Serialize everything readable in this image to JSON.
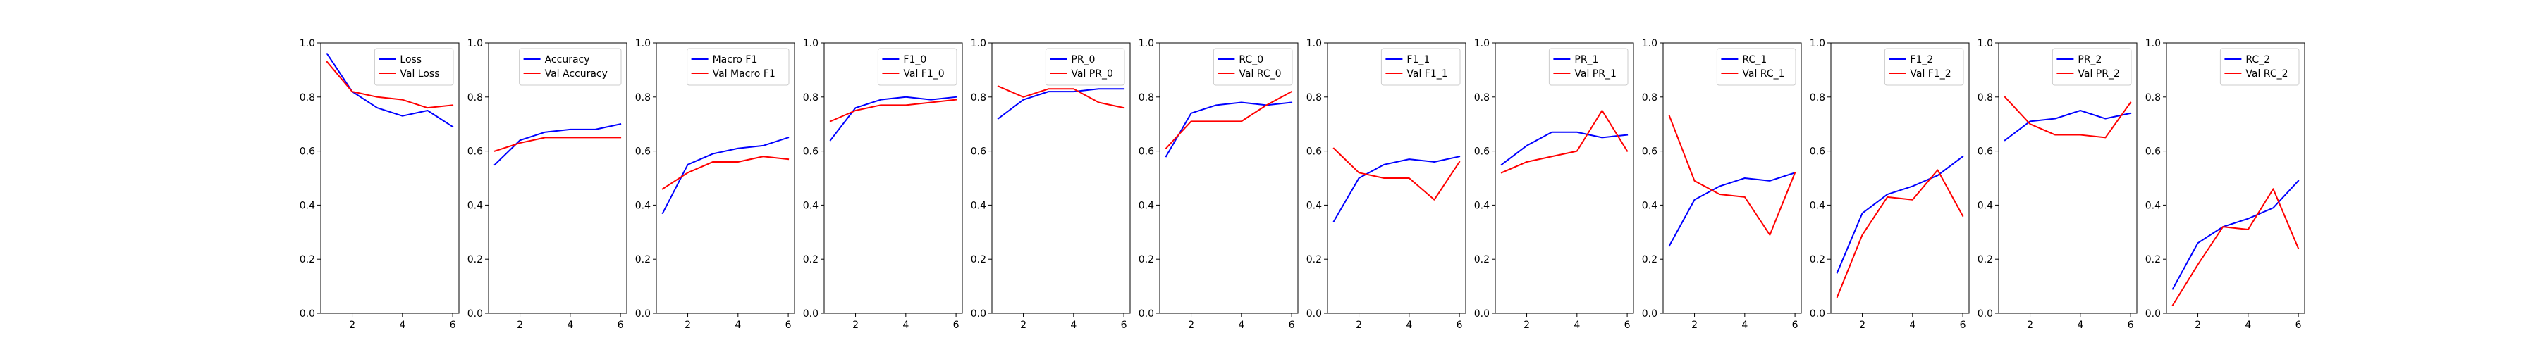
{
  "figure": {
    "colors": {
      "train": "#0000ff",
      "val": "#ff0000",
      "axis": "#000000",
      "background": "#ffffff"
    },
    "legend_placement": "upper-right"
  },
  "chart_data": [
    {
      "type": "line",
      "x": [
        1,
        2,
        3,
        4,
        5,
        6
      ],
      "xticks": [
        2,
        4,
        6
      ],
      "xlim": [
        0.75,
        6.25
      ],
      "ylim": [
        0,
        1
      ],
      "yticks": [
        0.0,
        0.2,
        0.4,
        0.6,
        0.8,
        1.0
      ],
      "grid": false,
      "legend": "upper-right",
      "series": [
        {
          "name": "Loss",
          "color": "#0000ff",
          "values": [
            0.96,
            0.82,
            0.76,
            0.73,
            0.75,
            0.69
          ]
        },
        {
          "name": "Val Loss",
          "color": "#ff0000",
          "values": [
            0.93,
            0.82,
            0.8,
            0.79,
            0.76,
            0.77
          ]
        }
      ]
    },
    {
      "type": "line",
      "x": [
        1,
        2,
        3,
        4,
        5,
        6
      ],
      "xticks": [
        2,
        4,
        6
      ],
      "xlim": [
        0.75,
        6.25
      ],
      "ylim": [
        0,
        1
      ],
      "yticks": [
        0.0,
        0.2,
        0.4,
        0.6,
        0.8,
        1.0
      ],
      "grid": false,
      "legend": "upper-right",
      "series": [
        {
          "name": "Accuracy",
          "color": "#0000ff",
          "values": [
            0.55,
            0.64,
            0.67,
            0.68,
            0.68,
            0.7
          ]
        },
        {
          "name": "Val Accuracy",
          "color": "#ff0000",
          "values": [
            0.6,
            0.63,
            0.65,
            0.65,
            0.65,
            0.65
          ]
        }
      ]
    },
    {
      "type": "line",
      "x": [
        1,
        2,
        3,
        4,
        5,
        6
      ],
      "xticks": [
        2,
        4,
        6
      ],
      "xlim": [
        0.75,
        6.25
      ],
      "ylim": [
        0,
        1
      ],
      "yticks": [
        0.0,
        0.2,
        0.4,
        0.6,
        0.8,
        1.0
      ],
      "grid": false,
      "legend": "upper-right",
      "series": [
        {
          "name": "Macro F1",
          "color": "#0000ff",
          "values": [
            0.37,
            0.55,
            0.59,
            0.61,
            0.62,
            0.65
          ]
        },
        {
          "name": "Val Macro F1",
          "color": "#ff0000",
          "values": [
            0.46,
            0.52,
            0.56,
            0.56,
            0.58,
            0.57
          ]
        }
      ]
    },
    {
      "type": "line",
      "x": [
        1,
        2,
        3,
        4,
        5,
        6
      ],
      "xticks": [
        2,
        4,
        6
      ],
      "xlim": [
        0.75,
        6.25
      ],
      "ylim": [
        0,
        1
      ],
      "yticks": [
        0.0,
        0.2,
        0.4,
        0.6,
        0.8,
        1.0
      ],
      "grid": false,
      "legend": "upper-right",
      "series": [
        {
          "name": "F1_0",
          "color": "#0000ff",
          "values": [
            0.64,
            0.76,
            0.79,
            0.8,
            0.79,
            0.8
          ]
        },
        {
          "name": "Val F1_0",
          "color": "#ff0000",
          "values": [
            0.71,
            0.75,
            0.77,
            0.77,
            0.78,
            0.79
          ]
        }
      ]
    },
    {
      "type": "line",
      "x": [
        1,
        2,
        3,
        4,
        5,
        6
      ],
      "xticks": [
        2,
        4,
        6
      ],
      "xlim": [
        0.75,
        6.25
      ],
      "ylim": [
        0,
        1
      ],
      "yticks": [
        0.0,
        0.2,
        0.4,
        0.6,
        0.8,
        1.0
      ],
      "grid": false,
      "legend": "upper-right",
      "series": [
        {
          "name": "PR_0",
          "color": "#0000ff",
          "values": [
            0.72,
            0.79,
            0.82,
            0.82,
            0.83,
            0.83
          ]
        },
        {
          "name": "Val PR_0",
          "color": "#ff0000",
          "values": [
            0.84,
            0.8,
            0.83,
            0.83,
            0.78,
            0.76
          ]
        }
      ]
    },
    {
      "type": "line",
      "x": [
        1,
        2,
        3,
        4,
        5,
        6
      ],
      "xticks": [
        2,
        4,
        6
      ],
      "xlim": [
        0.75,
        6.25
      ],
      "ylim": [
        0,
        1
      ],
      "yticks": [
        0.0,
        0.2,
        0.4,
        0.6,
        0.8,
        1.0
      ],
      "grid": false,
      "legend": "upper-right",
      "series": [
        {
          "name": "RC_0",
          "color": "#0000ff",
          "values": [
            0.58,
            0.74,
            0.77,
            0.78,
            0.77,
            0.78
          ]
        },
        {
          "name": "Val RC_0",
          "color": "#ff0000",
          "values": [
            0.61,
            0.71,
            0.71,
            0.71,
            0.77,
            0.82
          ]
        }
      ]
    },
    {
      "type": "line",
      "x": [
        1,
        2,
        3,
        4,
        5,
        6
      ],
      "xticks": [
        2,
        4,
        6
      ],
      "xlim": [
        0.75,
        6.25
      ],
      "ylim": [
        0,
        1
      ],
      "yticks": [
        0.0,
        0.2,
        0.4,
        0.6,
        0.8,
        1.0
      ],
      "grid": false,
      "legend": "upper-right",
      "series": [
        {
          "name": "F1_1",
          "color": "#0000ff",
          "values": [
            0.34,
            0.5,
            0.55,
            0.57,
            0.56,
            0.58
          ]
        },
        {
          "name": "Val F1_1",
          "color": "#ff0000",
          "values": [
            0.61,
            0.52,
            0.5,
            0.5,
            0.42,
            0.56
          ]
        }
      ]
    },
    {
      "type": "line",
      "x": [
        1,
        2,
        3,
        4,
        5,
        6
      ],
      "xticks": [
        2,
        4,
        6
      ],
      "xlim": [
        0.75,
        6.25
      ],
      "ylim": [
        0,
        1
      ],
      "yticks": [
        0.0,
        0.2,
        0.4,
        0.6,
        0.8,
        1.0
      ],
      "grid": false,
      "legend": "upper-right",
      "series": [
        {
          "name": "PR_1",
          "color": "#0000ff",
          "values": [
            0.55,
            0.62,
            0.67,
            0.67,
            0.65,
            0.66
          ]
        },
        {
          "name": "Val PR_1",
          "color": "#ff0000",
          "values": [
            0.52,
            0.56,
            0.58,
            0.6,
            0.75,
            0.6
          ]
        }
      ]
    },
    {
      "type": "line",
      "x": [
        1,
        2,
        3,
        4,
        5,
        6
      ],
      "xticks": [
        2,
        4,
        6
      ],
      "xlim": [
        0.75,
        6.25
      ],
      "ylim": [
        0,
        1
      ],
      "yticks": [
        0.0,
        0.2,
        0.4,
        0.6,
        0.8,
        1.0
      ],
      "grid": false,
      "legend": "upper-right",
      "series": [
        {
          "name": "RC_1",
          "color": "#0000ff",
          "values": [
            0.25,
            0.42,
            0.47,
            0.5,
            0.49,
            0.52
          ]
        },
        {
          "name": "Val RC_1",
          "color": "#ff0000",
          "values": [
            0.73,
            0.49,
            0.44,
            0.43,
            0.29,
            0.52
          ]
        }
      ]
    },
    {
      "type": "line",
      "x": [
        1,
        2,
        3,
        4,
        5,
        6
      ],
      "xticks": [
        2,
        4,
        6
      ],
      "xlim": [
        0.75,
        6.25
      ],
      "ylim": [
        0,
        1
      ],
      "yticks": [
        0.0,
        0.2,
        0.4,
        0.6,
        0.8,
        1.0
      ],
      "grid": false,
      "legend": "upper-right",
      "series": [
        {
          "name": "F1_2",
          "color": "#0000ff",
          "values": [
            0.15,
            0.37,
            0.44,
            0.47,
            0.51,
            0.58
          ]
        },
        {
          "name": "Val F1_2",
          "color": "#ff0000",
          "values": [
            0.06,
            0.29,
            0.43,
            0.42,
            0.53,
            0.36
          ]
        }
      ]
    },
    {
      "type": "line",
      "x": [
        1,
        2,
        3,
        4,
        5,
        6
      ],
      "xticks": [
        2,
        4,
        6
      ],
      "xlim": [
        0.75,
        6.25
      ],
      "ylim": [
        0,
        1
      ],
      "yticks": [
        0.0,
        0.2,
        0.4,
        0.6,
        0.8,
        1.0
      ],
      "grid": false,
      "legend": "upper-right",
      "series": [
        {
          "name": "PR_2",
          "color": "#0000ff",
          "values": [
            0.64,
            0.71,
            0.72,
            0.75,
            0.72,
            0.74
          ]
        },
        {
          "name": "Val PR_2",
          "color": "#ff0000",
          "values": [
            0.8,
            0.7,
            0.66,
            0.66,
            0.65,
            0.78
          ]
        }
      ]
    },
    {
      "type": "line",
      "x": [
        1,
        2,
        3,
        4,
        5,
        6
      ],
      "xticks": [
        2,
        4,
        6
      ],
      "xlim": [
        0.75,
        6.25
      ],
      "ylim": [
        0,
        1
      ],
      "yticks": [
        0.0,
        0.2,
        0.4,
        0.6,
        0.8,
        1.0
      ],
      "grid": false,
      "legend": "upper-right",
      "series": [
        {
          "name": "RC_2",
          "color": "#0000ff",
          "values": [
            0.09,
            0.26,
            0.32,
            0.35,
            0.39,
            0.49
          ]
        },
        {
          "name": "Val RC_2",
          "color": "#ff0000",
          "values": [
            0.03,
            0.18,
            0.32,
            0.31,
            0.46,
            0.24
          ]
        }
      ]
    }
  ]
}
